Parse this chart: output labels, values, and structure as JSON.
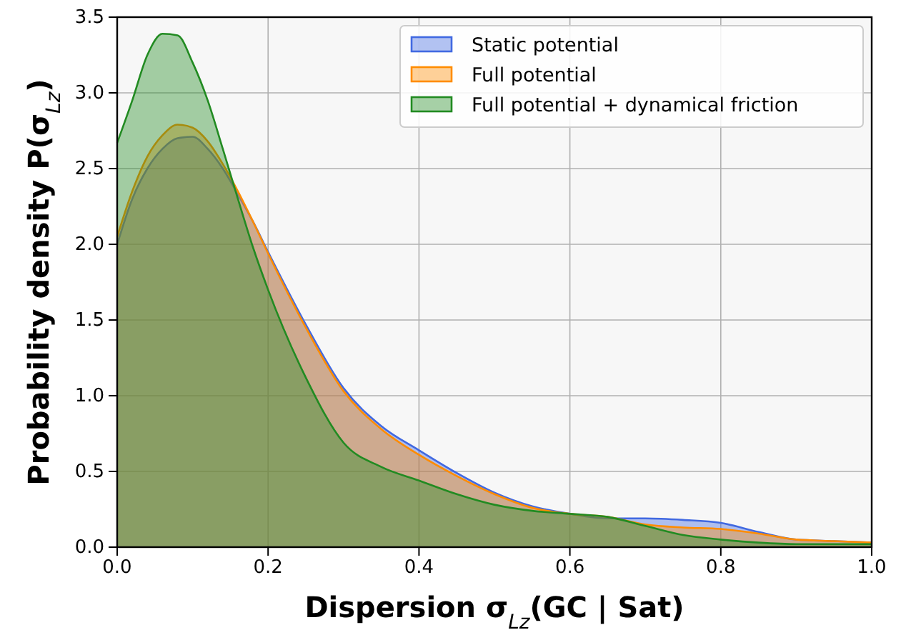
{
  "chart_data": {
    "type": "area",
    "xlabel": "Dispersion σ$_{Lz}$(GC | Sat)",
    "ylabel": "Probability density P(σ$_{Lz}$)",
    "x": [
      0,
      0.02,
      0.04,
      0.06,
      0.08,
      0.1,
      0.12,
      0.14,
      0.16,
      0.18,
      0.2,
      0.25,
      0.3,
      0.35,
      0.4,
      0.45,
      0.5,
      0.55,
      0.6,
      0.65,
      0.7,
      0.75,
      0.8,
      0.85,
      0.9,
      0.95,
      1.0
    ],
    "series": [
      {
        "name": "Static potential",
        "color": "#4169e1",
        "values": [
          2.0,
          2.3,
          2.5,
          2.63,
          2.7,
          2.71,
          2.63,
          2.5,
          2.33,
          2.15,
          1.95,
          1.47,
          1.05,
          0.8,
          0.64,
          0.49,
          0.36,
          0.27,
          0.22,
          0.19,
          0.19,
          0.18,
          0.16,
          0.1,
          0.05,
          0.04,
          0.03
        ]
      },
      {
        "name": "Full potential",
        "color": "#ff8c00",
        "values": [
          2.05,
          2.35,
          2.58,
          2.72,
          2.79,
          2.77,
          2.68,
          2.53,
          2.35,
          2.15,
          1.94,
          1.45,
          1.03,
          0.78,
          0.61,
          0.47,
          0.35,
          0.26,
          0.22,
          0.2,
          0.15,
          0.13,
          0.12,
          0.09,
          0.05,
          0.04,
          0.03
        ]
      },
      {
        "name": "Full potential + dynamical friction",
        "color": "#228b22",
        "values": [
          2.67,
          2.95,
          3.25,
          3.39,
          3.38,
          3.2,
          2.95,
          2.63,
          2.3,
          1.98,
          1.7,
          1.12,
          0.69,
          0.53,
          0.44,
          0.35,
          0.28,
          0.24,
          0.22,
          0.2,
          0.14,
          0.08,
          0.05,
          0.03,
          0.02,
          0.02,
          0.02
        ]
      }
    ],
    "xlim": [
      0,
      1
    ],
    "xticks": [
      {
        "value": 0,
        "label": "0.0"
      },
      0.2,
      0.4,
      0.6,
      0.8,
      {
        "value": 1,
        "label": "1.0"
      }
    ],
    "ylim": [
      0,
      3.5
    ],
    "yticks": [
      {
        "value": 0,
        "label": "0.0"
      },
      0.5,
      {
        "value": 1,
        "label": "1.0"
      },
      1.5,
      {
        "value": 2,
        "label": "2.0"
      },
      2.5,
      {
        "value": 3,
        "label": "3.0"
      },
      3.5
    ],
    "grid": true,
    "legend": "top right"
  }
}
